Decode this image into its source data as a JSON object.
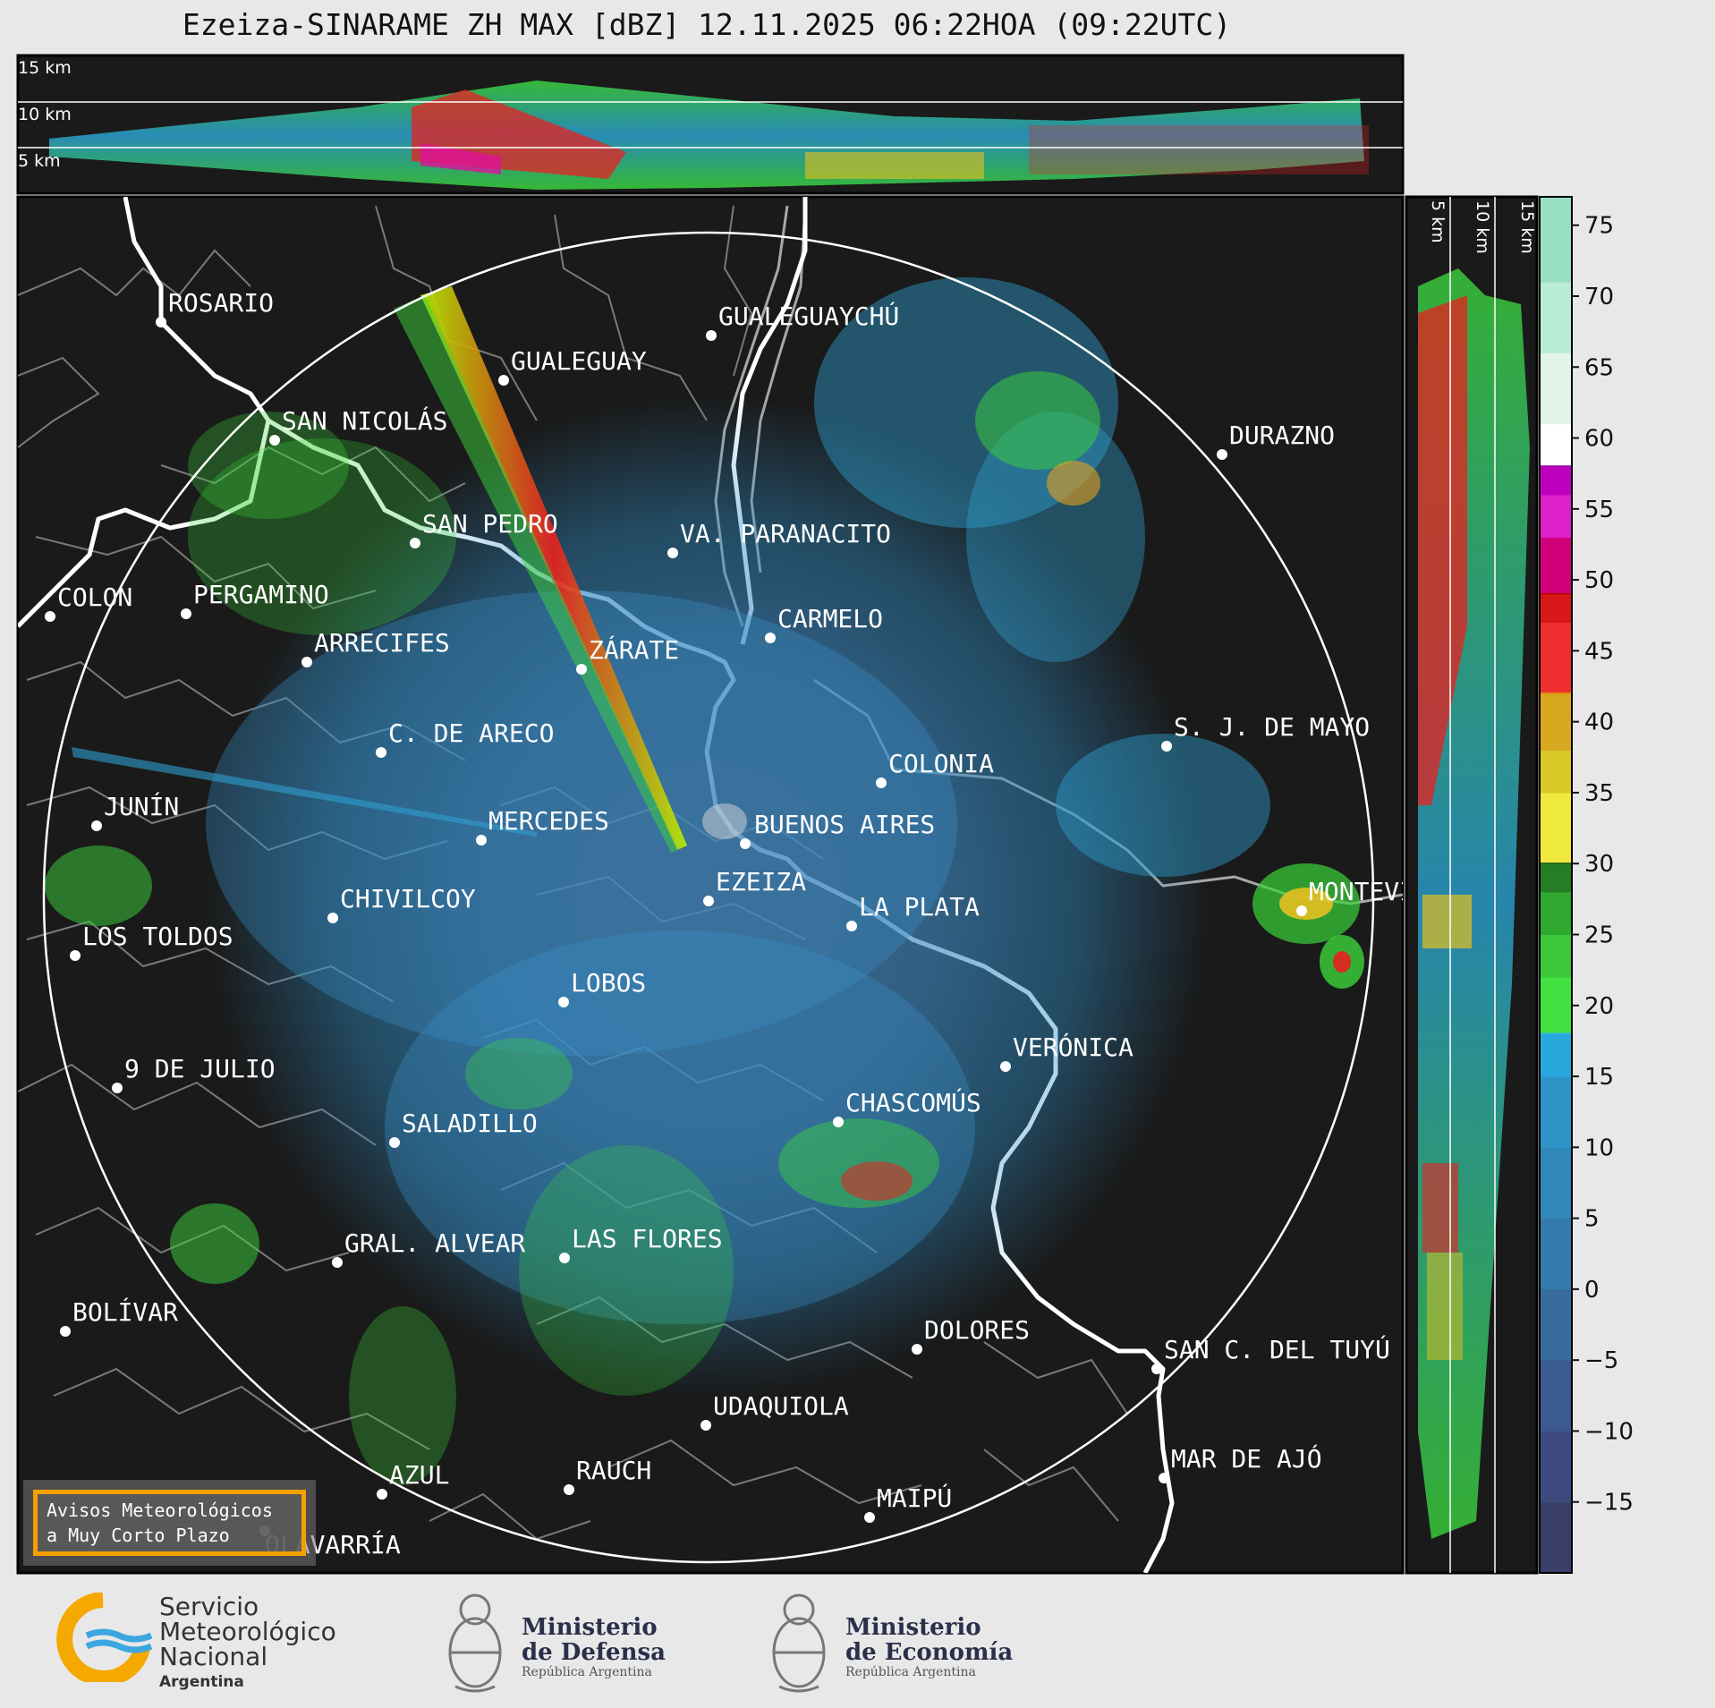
{
  "title": "Ezeiza-SINARAME ZH MAX [dBZ] 12.11.2025 06:22HOA (09:22UTC)",
  "height_labels_top": [
    "15 km",
    "10 km",
    "5 km"
  ],
  "height_labels_right": [
    "5 km",
    "10 km",
    "15 km"
  ],
  "colorbar": {
    "ticks": [
      "75",
      "70",
      "65",
      "60",
      "55",
      "50",
      "45",
      "40",
      "35",
      "30",
      "25",
      "20",
      "15",
      "10",
      "5",
      "0",
      "−5",
      "−10",
      "−15"
    ],
    "range_dbz": [
      -20,
      77
    ]
  },
  "cities": [
    {
      "name": "ROSARIO"
    },
    {
      "name": "GUALEGUAYCHÚ"
    },
    {
      "name": "GUALEGUAY"
    },
    {
      "name": "SAN NICOLÁS"
    },
    {
      "name": "DURAZNO"
    },
    {
      "name": "SAN PEDRO"
    },
    {
      "name": "VA. PARANACITO"
    },
    {
      "name": "COLON"
    },
    {
      "name": "PERGAMINO"
    },
    {
      "name": "CARMELO"
    },
    {
      "name": "ARRECIFES"
    },
    {
      "name": "ZÁRATE"
    },
    {
      "name": "S. J. DE MAYO"
    },
    {
      "name": "C. DE ARECO"
    },
    {
      "name": "COLONIA"
    },
    {
      "name": "JUNÍN"
    },
    {
      "name": "BUENOS AIRES"
    },
    {
      "name": "MERCEDES"
    },
    {
      "name": "EZEIZA"
    },
    {
      "name": "MONTEVIDEO"
    },
    {
      "name": "CHIVILCOY"
    },
    {
      "name": "LA PLATA"
    },
    {
      "name": "LOS TOLDOS"
    },
    {
      "name": "LOBOS"
    },
    {
      "name": "VERÓNICA"
    },
    {
      "name": "9 DE JULIO"
    },
    {
      "name": "CHASCOMÚS"
    },
    {
      "name": "SALADILLO"
    },
    {
      "name": "GRAL. ALVEAR"
    },
    {
      "name": "LAS FLORES"
    },
    {
      "name": "BOLÍVAR"
    },
    {
      "name": "DOLORES"
    },
    {
      "name": "SAN C. DEL TUYÚ"
    },
    {
      "name": "UDAQUIOLA"
    },
    {
      "name": "MAR DE AJÓ"
    },
    {
      "name": "AZUL"
    },
    {
      "name": "RAUCH"
    },
    {
      "name": "OLAVARRÍA"
    },
    {
      "name": "MAIPÚ"
    }
  ],
  "warning_box": {
    "line1": "Avisos Meteorológicos",
    "line2": "a Muy Corto Plazo"
  },
  "logos": {
    "smn": {
      "l1": "Servicio",
      "l2": "Meteorológico",
      "l3": "Nacional",
      "l4": "Argentina"
    },
    "defensa": {
      "l1": "Ministerio",
      "l2": "de Defensa",
      "l3": "República Argentina"
    },
    "economia": {
      "l1": "Ministerio",
      "l2": "de Economía",
      "l3": "República Argentina"
    }
  },
  "colors": {
    "background": "#1a1a1a",
    "page": "#e8e8e8",
    "warning_border": "#f5a000"
  }
}
